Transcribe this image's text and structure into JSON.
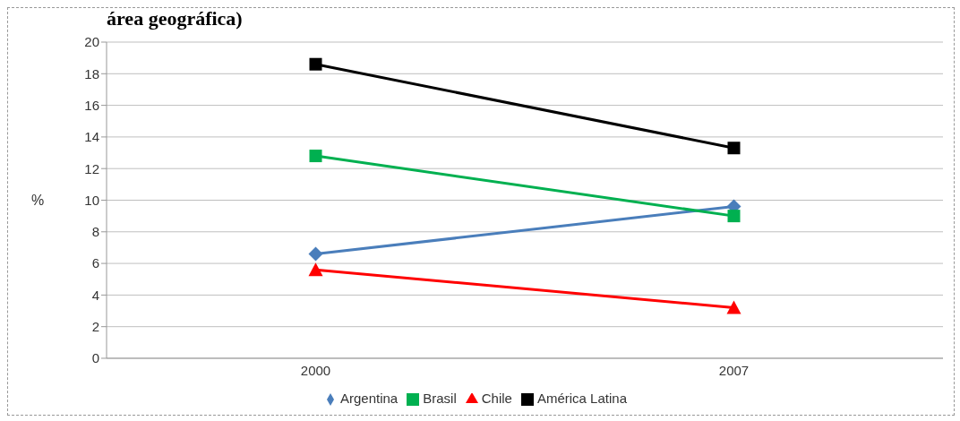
{
  "chart_data": {
    "type": "line",
    "title": "área geográfica)",
    "ylabel": "%",
    "categories": [
      "2000",
      "2007"
    ],
    "series": [
      {
        "name": "Argentina",
        "color": "#4a7ebb",
        "marker": "diamond",
        "values": [
          6.6,
          9.6
        ]
      },
      {
        "name": "Brasil",
        "color": "#00b050",
        "marker": "square",
        "values": [
          12.8,
          9.0
        ]
      },
      {
        "name": "Chile",
        "color": "#ff0000",
        "marker": "triangle",
        "values": [
          5.6,
          3.2
        ]
      },
      {
        "name": "América Latina",
        "color": "#000000",
        "marker": "square",
        "values": [
          18.6,
          13.3
        ]
      }
    ],
    "ylim": [
      0,
      20
    ],
    "yticks": [
      0,
      2,
      4,
      6,
      8,
      10,
      12,
      14,
      16,
      18,
      20
    ],
    "grid": "y",
    "legend": "bottom"
  }
}
